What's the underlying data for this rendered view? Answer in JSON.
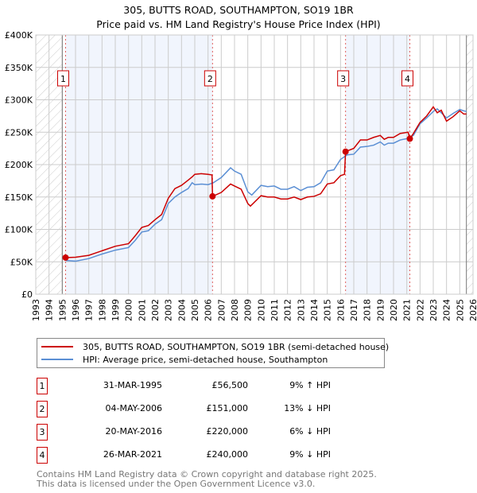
{
  "chart_data": {
    "type": "line",
    "title": "305, BUTTS ROAD, SOUTHAMPTON, SO19 1BR",
    "subtitle": "Price paid vs. HM Land Registry's House Price Index (HPI)",
    "xlim": [
      1993,
      2026
    ],
    "ylim": [
      0,
      400000
    ],
    "grid": true,
    "y_ticks": [
      {
        "v": 0,
        "label": "£0"
      },
      {
        "v": 50000,
        "label": "£50K"
      },
      {
        "v": 100000,
        "label": "£100K"
      },
      {
        "v": 150000,
        "label": "£150K"
      },
      {
        "v": 200000,
        "label": "£200K"
      },
      {
        "v": 250000,
        "label": "£250K"
      },
      {
        "v": 300000,
        "label": "£300K"
      },
      {
        "v": 350000,
        "label": "£350K"
      },
      {
        "v": 400000,
        "label": "£400K"
      }
    ],
    "x_ticks": [
      "1993",
      "1994",
      "1995",
      "1996",
      "1997",
      "1998",
      "1999",
      "2000",
      "2001",
      "2002",
      "2003",
      "2004",
      "2005",
      "2006",
      "2007",
      "2008",
      "2009",
      "2010",
      "2011",
      "2012",
      "2013",
      "2014",
      "2015",
      "2016",
      "2017",
      "2018",
      "2019",
      "2020",
      "2021",
      "2022",
      "2023",
      "2024",
      "2025",
      "2026"
    ],
    "hatched_ranges": [
      [
        1993,
        1995
      ],
      [
        2025.5,
        2026
      ]
    ],
    "shaded_ranges": [
      [
        1995.25,
        2006.34
      ],
      [
        2016.38,
        2021.23
      ]
    ],
    "series": [
      {
        "name": "305, BUTTS ROAD, SOUTHAMPTON, SO19 1BR (semi-detached house)",
        "color": "#cc0000",
        "x": [
          1995.25,
          1996,
          1997,
          1998,
          1999,
          2000,
          2000.5,
          2001,
          2001.5,
          2002,
          2002.5,
          2003,
          2003.5,
          2004,
          2004.5,
          2004.8,
          2005,
          2005.5,
          2006,
          2006.3,
          2006.34,
          2007,
          2007.7,
          2008,
          2008.5,
          2009,
          2009.2,
          2010,
          2010.5,
          2011,
          2011.5,
          2012,
          2012.5,
          2013,
          2013.5,
          2014,
          2014.5,
          2015,
          2015.5,
          2016,
          2016.3,
          2016.38,
          2017,
          2017.5,
          2018,
          2018.5,
          2019,
          2019.3,
          2019.6,
          2020,
          2020.5,
          2021.1,
          2021.23,
          2021.5,
          2022,
          2022.5,
          2023,
          2023.3,
          2023.6,
          2024,
          2024.5,
          2025,
          2025.3,
          2025.5
        ],
        "y": [
          56500,
          57000,
          60000,
          67000,
          74000,
          78000,
          90000,
          103000,
          106000,
          115000,
          123000,
          148000,
          163000,
          168000,
          176000,
          181000,
          185000,
          186000,
          185000,
          184000,
          151000,
          157000,
          170000,
          167000,
          162000,
          140000,
          136000,
          152000,
          150000,
          150000,
          147000,
          147000,
          150000,
          146000,
          150000,
          151000,
          155000,
          170000,
          172000,
          183000,
          185000,
          220000,
          225000,
          238000,
          238000,
          242000,
          245000,
          239000,
          242000,
          242000,
          248000,
          250000,
          240000,
          248000,
          265000,
          275000,
          289000,
          280000,
          284000,
          267000,
          274000,
          283000,
          278000,
          278000
        ]
      },
      {
        "name": "HPI: Average price, semi-detached house, Southampton",
        "color": "#5b8fd4",
        "x": [
          1995.25,
          1996,
          1997,
          1998,
          1999,
          2000,
          2000.5,
          2001,
          2001.5,
          2002,
          2002.5,
          2003,
          2003.5,
          2004,
          2004.5,
          2004.8,
          2005,
          2005.5,
          2006,
          2006.4,
          2007,
          2007.7,
          2008,
          2008.5,
          2009,
          2009.3,
          2010,
          2010.5,
          2011,
          2011.5,
          2012,
          2012.5,
          2013,
          2013.5,
          2014,
          2014.5,
          2015,
          2015.5,
          2016,
          2016.5,
          2017,
          2017.5,
          2018,
          2018.5,
          2019,
          2019.3,
          2019.6,
          2020,
          2020.5,
          2021,
          2021.5,
          2022,
          2022.5,
          2023,
          2023.3,
          2023.6,
          2024,
          2024.5,
          2025,
          2025.3,
          2025.5
        ],
        "y": [
          52000,
          51000,
          55000,
          62000,
          68000,
          72000,
          83000,
          96000,
          98000,
          108000,
          115000,
          140000,
          150000,
          157000,
          163000,
          172000,
          169000,
          170000,
          169000,
          172000,
          180000,
          195000,
          190000,
          185000,
          158000,
          153000,
          168000,
          166000,
          167000,
          162000,
          162000,
          166000,
          160000,
          165000,
          166000,
          172000,
          190000,
          192000,
          208000,
          215000,
          216000,
          227000,
          228000,
          230000,
          235000,
          230000,
          233000,
          233000,
          238000,
          240000,
          245000,
          263000,
          272000,
          282000,
          286000,
          280000,
          272000,
          279000,
          285000,
          283000,
          282000
        ]
      }
    ],
    "sales": [
      {
        "label": "1",
        "x": 1995.25,
        "y": 56500,
        "date": "31-MAR-1995",
        "price": "£56,500",
        "hpi": "9% ↑ HPI"
      },
      {
        "label": "2",
        "x": 2006.34,
        "y": 151000,
        "date": "04-MAY-2006",
        "price": "£151,000",
        "hpi": "13% ↓ HPI"
      },
      {
        "label": "3",
        "x": 2016.38,
        "y": 220000,
        "date": "20-MAY-2016",
        "price": "£220,000",
        "hpi": "6% ↓ HPI"
      },
      {
        "label": "4",
        "x": 2021.23,
        "y": 240000,
        "date": "26-MAR-2021",
        "price": "£240,000",
        "hpi": "9% ↓ HPI"
      }
    ]
  },
  "footer": {
    "line1": "Contains HM Land Registry data © Crown copyright and database right 2025.",
    "line2": "This data is licensed under the Open Government Licence v3.0."
  }
}
